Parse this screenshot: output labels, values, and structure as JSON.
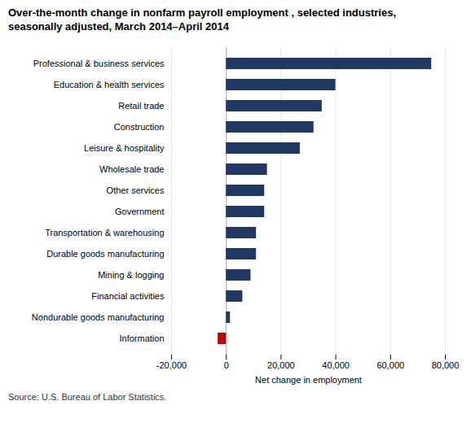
{
  "chart_data": {
    "type": "bar",
    "orientation": "horizontal",
    "title": "Over-the-month change in nonfarm payroll employment , selected industries,\nseasonally adjusted, March 2014–April 2014",
    "categories": [
      "Professional & business services",
      "Education & health services",
      "Retail trade",
      "Construction",
      "Leisure & hospitality",
      "Wholesale trade",
      "Other services",
      "Government",
      "Transportation & warehousing",
      "Durable goods manufacturing",
      "Mining & logging",
      "Financial activities",
      "Nondurable goods manufacturing",
      "Information"
    ],
    "values": [
      75000,
      40000,
      35000,
      32000,
      27000,
      15000,
      14000,
      14000,
      11000,
      11000,
      9000,
      6000,
      1500,
      -3000
    ],
    "colors": [
      "#1F3864",
      "#1F3864",
      "#1F3864",
      "#1F3864",
      "#1F3864",
      "#1F3864",
      "#1F3864",
      "#1F3864",
      "#1F3864",
      "#1F3864",
      "#1F3864",
      "#1F3864",
      "#1F3864",
      "#C00000"
    ],
    "xlabel": "Net change in employment",
    "xlim": [
      -20000,
      80000
    ],
    "xticks": [
      {
        "value": -20000,
        "label": "-20,000"
      },
      0,
      {
        "value": 20000,
        "label": "20,000"
      },
      {
        "value": 40000,
        "label": "40,000"
      },
      {
        "value": 60000,
        "label": "60,000"
      },
      {
        "value": 80000,
        "label": "80,000"
      }
    ],
    "grid": true,
    "source": "Source: U.S. Bureau of Labor Statistics."
  }
}
